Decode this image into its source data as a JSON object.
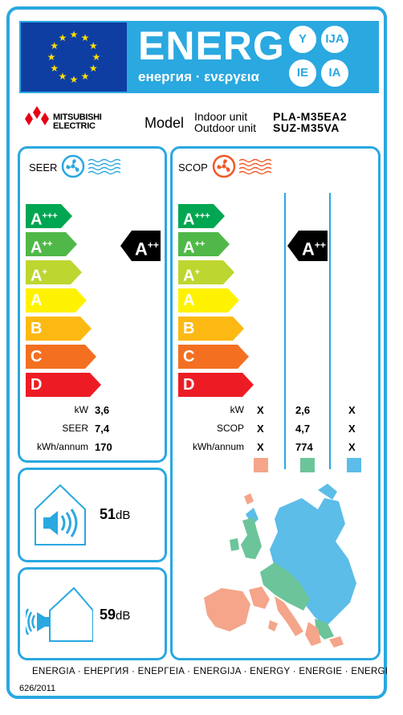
{
  "header": {
    "title": "ENERG",
    "subtitle": "енергия · ενεργεια",
    "lang_badges": [
      "Y",
      "IJA",
      "IE",
      "IA"
    ],
    "colors": {
      "label_blue": "#2aa8e0",
      "eu_blue": "#0f3ea3",
      "eu_star": "#ffe000"
    }
  },
  "brand": {
    "line1": "MITSUBISHI",
    "line2": "ELECTRIC",
    "logo_color": "#e60012"
  },
  "model": {
    "label": "Model",
    "indoor_label": "Indoor unit",
    "outdoor_label": "Outdoor unit",
    "indoor_model": "PLA-M35EA2",
    "outdoor_model": "SUZ-M35VA"
  },
  "classes": [
    {
      "letter": "A",
      "sup": "+++",
      "color": "#00a651"
    },
    {
      "letter": "A",
      "sup": "++",
      "color": "#50b848"
    },
    {
      "letter": "A",
      "sup": "+",
      "color": "#bed630"
    },
    {
      "letter": "A",
      "sup": "",
      "color": "#fff200"
    },
    {
      "letter": "B",
      "sup": "",
      "color": "#fdb913"
    },
    {
      "letter": "C",
      "sup": "",
      "color": "#f37021"
    },
    {
      "letter": "D",
      "sup": "",
      "color": "#ed1c24"
    }
  ],
  "cooling": {
    "title": "SEER",
    "icon_color": "#2aa8e0",
    "rating": {
      "letter": "A",
      "sup": "++"
    },
    "rows": [
      {
        "label": "kW",
        "value": "3,6"
      },
      {
        "label": "SEER",
        "value": "7,4"
      },
      {
        "label": "kWh/annum",
        "value": "170"
      }
    ]
  },
  "heating": {
    "title": "SCOP",
    "icon_color": "#ef5a28",
    "rating": {
      "letter": "A",
      "sup": "++"
    },
    "rows": [
      {
        "label": "kW",
        "values": [
          "X",
          "2,6",
          "X"
        ]
      },
      {
        "label": "SCOP",
        "values": [
          "X",
          "4,7",
          "X"
        ]
      },
      {
        "label": "kWh/annum",
        "values": [
          "X",
          "774",
          "X"
        ]
      }
    ],
    "zones": [
      {
        "name": "warmer",
        "color": "#f4a58a"
      },
      {
        "name": "average",
        "color": "#6cc49a"
      },
      {
        "name": "colder",
        "color": "#5bbde8"
      }
    ]
  },
  "noise": {
    "indoor": {
      "value": "51",
      "unit": "dB"
    },
    "outdoor": {
      "value": "59",
      "unit": "dB"
    }
  },
  "footer": {
    "languages": "ENERGIA · ЕНЕРГИЯ · ΕΝΕΡΓΕΙΑ · ENERGIJA · ENERGY · ENERGIE · ENERGI",
    "regulation": "626/2011"
  }
}
